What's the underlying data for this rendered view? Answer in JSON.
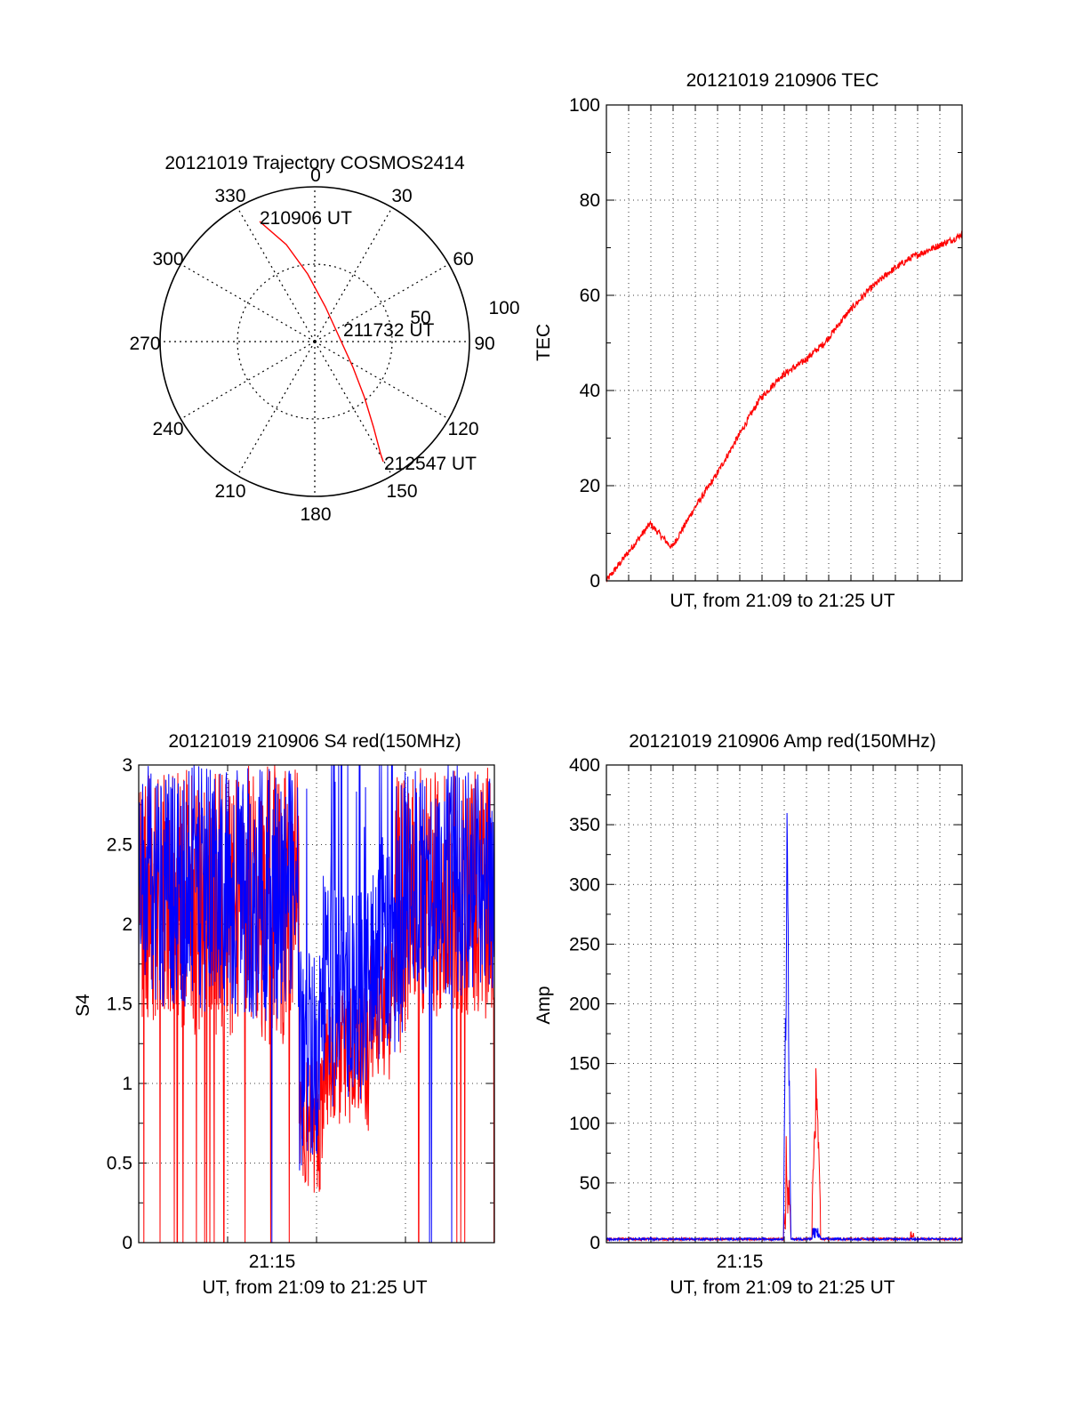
{
  "colors": {
    "red": "#ff0000",
    "blue": "#0000ff",
    "axis": "#000000",
    "grid": "#000000"
  },
  "chart_data": [
    {
      "type": "polar",
      "title": "20121019 Trajectory COSMOS2414",
      "angle_labels": [
        "0",
        "30",
        "60",
        "90",
        "120",
        "150",
        "180",
        "210",
        "240",
        "270",
        "300",
        "330"
      ],
      "radius_labels": [
        "50",
        "100"
      ],
      "radius_max": 100,
      "points": [
        {
          "label": "210906 UT",
          "azimuth": 336,
          "elevation": 0
        },
        {
          "label": "211732 UT",
          "azimuth": 70,
          "elevation": 93
        },
        {
          "label": "212547 UT",
          "azimuth": 154,
          "elevation": 4
        }
      ],
      "track": [
        [
          336,
          5
        ],
        [
          340,
          20
        ],
        [
          345,
          35
        ],
        [
          352,
          50
        ],
        [
          6,
          64
        ],
        [
          32,
          80
        ],
        [
          80,
          92
        ],
        [
          120,
          80
        ],
        [
          140,
          60
        ],
        [
          148,
          42
        ],
        [
          152,
          25
        ],
        [
          154,
          8
        ]
      ]
    },
    {
      "type": "line",
      "title": "20121019 210906 TEC",
      "xlabel": "UT, from 21:09 to 21:25 UT",
      "ylabel": "TEC",
      "ylim": [
        0,
        100
      ],
      "yticks": [
        "0",
        "20",
        "40",
        "60",
        "80",
        "100"
      ],
      "x_range_minutes": [
        0,
        16.3
      ],
      "series": [
        {
          "color": "red",
          "x": [
            0,
            1,
            2,
            3,
            4,
            5,
            6,
            7,
            8,
            9,
            10,
            11,
            12,
            13,
            14,
            15,
            16,
            16.3
          ],
          "values": [
            0,
            6,
            12,
            7,
            15,
            22,
            30,
            38,
            43,
            46,
            50,
            56,
            61,
            65,
            68,
            70,
            72,
            73
          ]
        }
      ]
    },
    {
      "type": "line",
      "title": "20121019 210906 S4 red(150MHz)",
      "xlabel": "UT, from 21:09 to 21:25 UT",
      "ylabel": "S4",
      "ylim": [
        0,
        3
      ],
      "yticks": [
        "0",
        "0.5",
        "1",
        "1.5",
        "2",
        "2.5",
        "3"
      ],
      "xtick_label": "21:15",
      "x_range_minutes": [
        0,
        16.3
      ],
      "series": [
        {
          "name": "red",
          "color": "red"
        },
        {
          "name": "blue",
          "color": "blue"
        }
      ]
    },
    {
      "type": "line",
      "title": "20121019 210906 Amp red(150MHz)",
      "xlabel": "UT, from 21:09 to 21:25 UT",
      "ylabel": "Amp",
      "ylim": [
        0,
        400
      ],
      "yticks": [
        "0",
        "50",
        "100",
        "150",
        "200",
        "250",
        "300",
        "350",
        "400"
      ],
      "xtick_label": "21:15",
      "x_range_minutes": [
        0,
        16.3
      ],
      "series": [
        {
          "name": "red",
          "color": "red"
        },
        {
          "name": "blue",
          "color": "blue"
        }
      ]
    }
  ]
}
